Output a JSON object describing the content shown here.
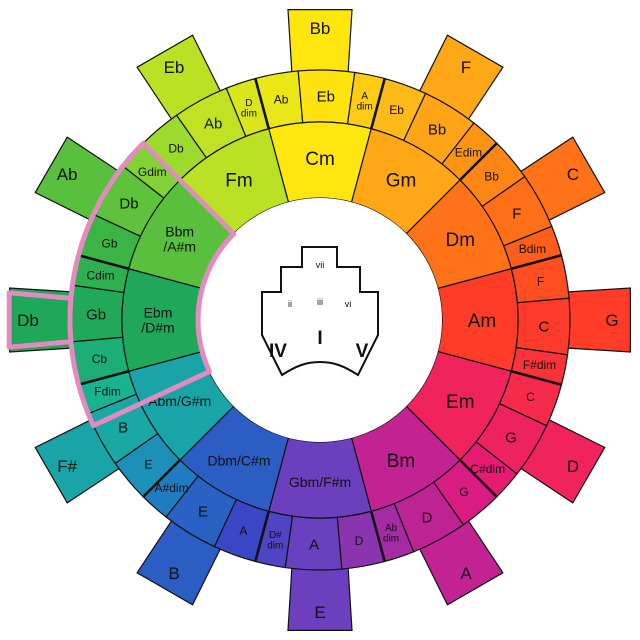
{
  "colors": {
    "highlight": "#e48ac0",
    "segments": [
      "#ffe60f",
      "#ffb41a",
      "#ff8e12",
      "#ff6419",
      "#ff3c28",
      "#f5284e",
      "#e6197a",
      "#b0279e",
      "#6c3fbf",
      "#3348c8",
      "#1c86c0",
      "#18b59a",
      "#1fa85a",
      "#3eb544",
      "#8ed632",
      "#d2e61e"
    ]
  },
  "diagram": {
    "outer_boxes": [
      "Bb",
      "F",
      "C",
      "G",
      "D",
      "A",
      "E",
      "B",
      "F#",
      "Db",
      "Ab",
      "Eb"
    ],
    "minor_ring": [
      "Cm",
      "Gm",
      "Dm",
      "Am",
      "Em",
      "Bm",
      "Gbm/F#m",
      "Dbm/C#m",
      "Abm/G#m",
      "Ebm\n/D#m",
      "Bbm\n/A#m",
      "Fm"
    ],
    "middle_ring": [
      [
        "Eb",
        "Ab",
        "A\ndim"
      ],
      [
        "Bb",
        "Eb",
        "Edim"
      ],
      [
        "F",
        "Bb",
        "Bdim"
      ],
      [
        "C",
        "F",
        "F#dim"
      ],
      [
        "G",
        "C",
        "C#dim"
      ],
      [
        "D",
        "G",
        "Ab\ndim"
      ],
      [
        "A",
        "D",
        "D#\ndim"
      ],
      [
        "E",
        "A",
        "A#dim"
      ],
      [
        "B",
        "E",
        "Fdim"
      ],
      [
        "Gb",
        "Cb",
        "Cdim"
      ],
      [
        "Db",
        "Gb",
        "Gdim"
      ],
      [
        "Ab",
        "Db",
        "D\ndim"
      ]
    ],
    "roman_numerals": [
      "vii",
      "ii",
      "iii",
      "vi",
      "IV",
      "I",
      "V"
    ]
  }
}
